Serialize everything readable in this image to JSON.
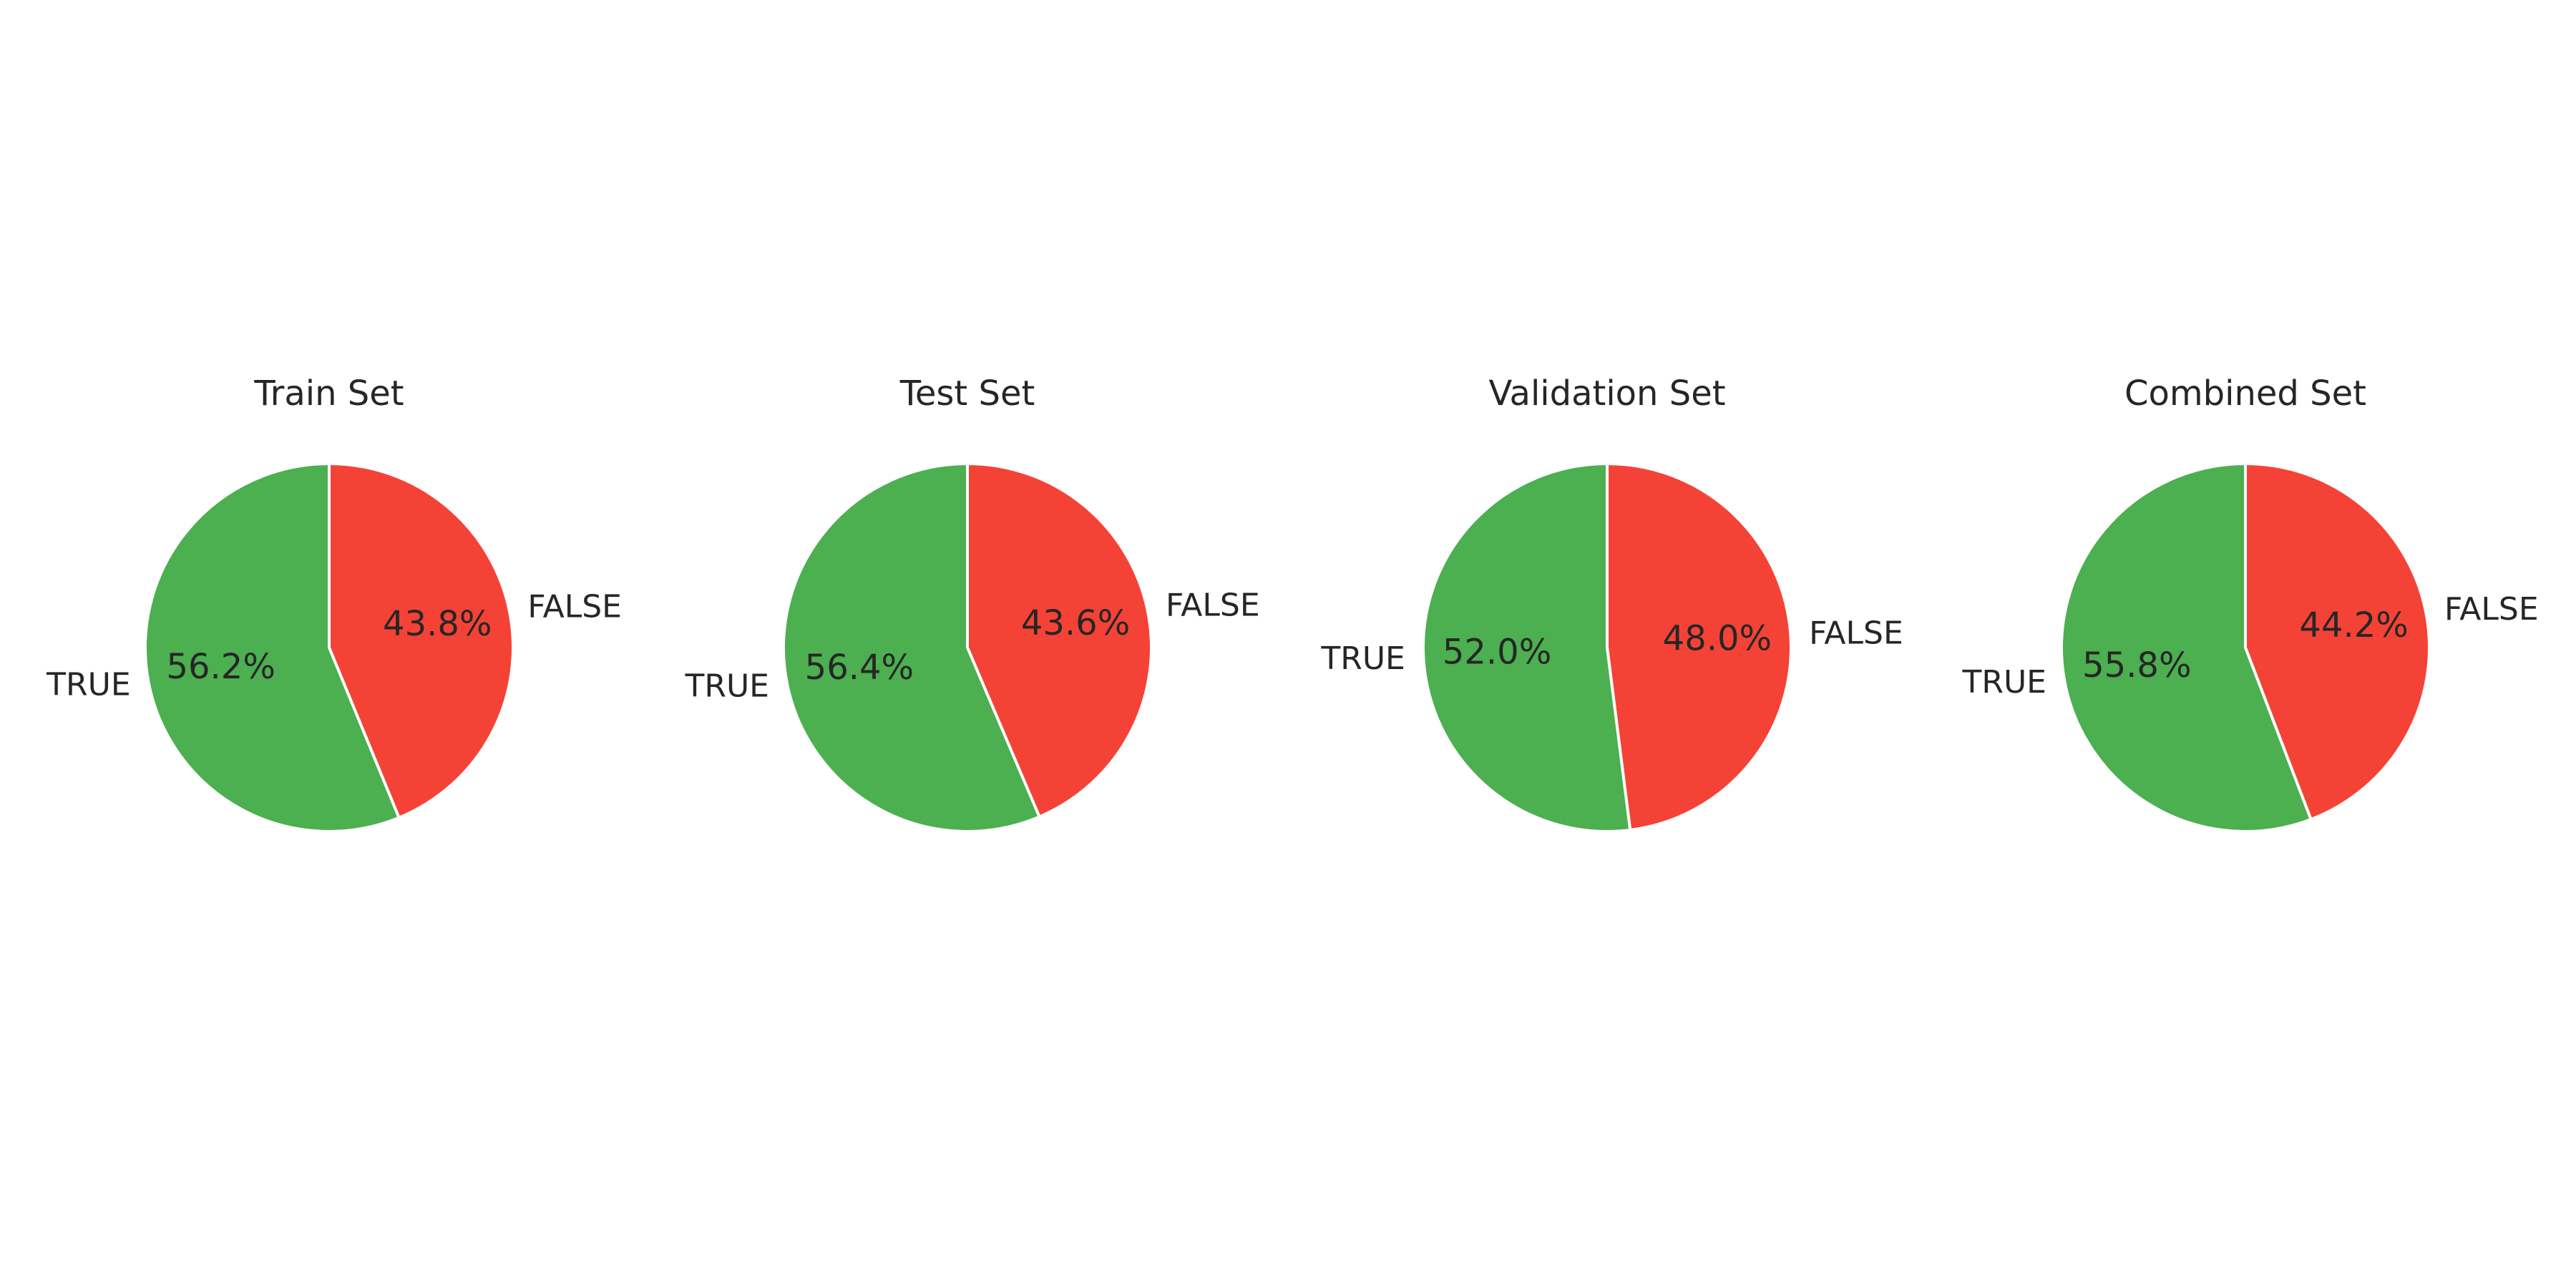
{
  "chart_data": [
    {
      "type": "pie",
      "title": "Train Set",
      "slices": [
        {
          "label": "FALSE",
          "value": 43.8,
          "pct_label": "43.8%",
          "color": "#F44336"
        },
        {
          "label": "TRUE",
          "value": 56.2,
          "pct_label": "56.2%",
          "color": "#4CAF50"
        }
      ]
    },
    {
      "type": "pie",
      "title": "Test Set",
      "slices": [
        {
          "label": "FALSE",
          "value": 43.6,
          "pct_label": "43.6%",
          "color": "#F44336"
        },
        {
          "label": "TRUE",
          "value": 56.4,
          "pct_label": "56.4%",
          "color": "#4CAF50"
        }
      ]
    },
    {
      "type": "pie",
      "title": "Validation Set",
      "slices": [
        {
          "label": "FALSE",
          "value": 48.0,
          "pct_label": "48.0%",
          "color": "#F44336"
        },
        {
          "label": "TRUE",
          "value": 52.0,
          "pct_label": "52.0%",
          "color": "#4CAF50"
        }
      ]
    },
    {
      "type": "pie",
      "title": "Combined Set",
      "slices": [
        {
          "label": "FALSE",
          "value": 44.2,
          "pct_label": "44.2%",
          "color": "#F44336"
        },
        {
          "label": "TRUE",
          "value": 55.8,
          "pct_label": "55.8%",
          "color": "#4CAF50"
        }
      ]
    }
  ]
}
